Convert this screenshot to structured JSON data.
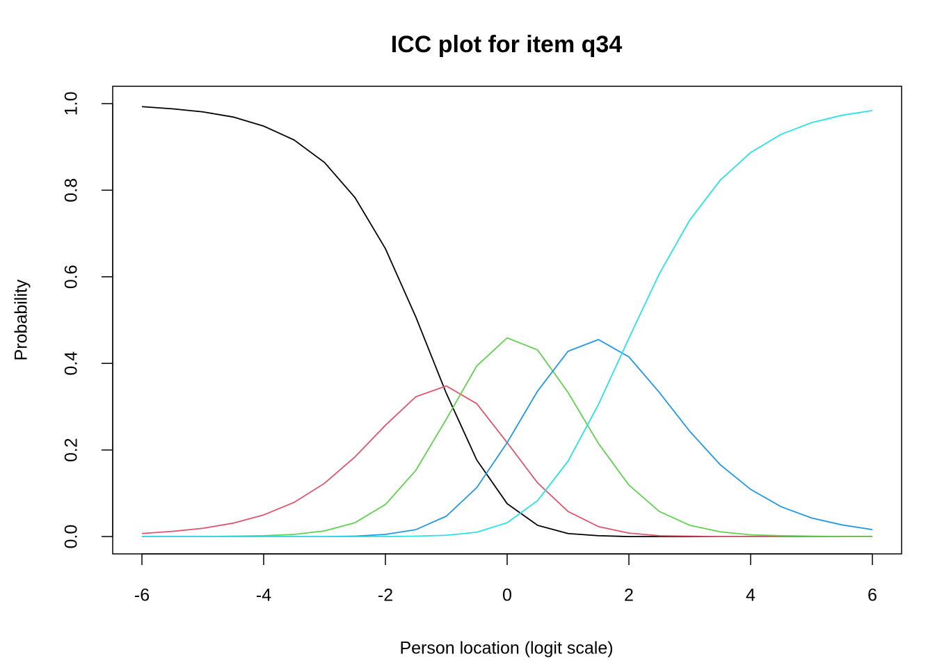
{
  "chart_data": {
    "type": "line",
    "title": "ICC plot for item q34",
    "x_label": "Person location (logit scale)",
    "y_label": "Probability",
    "x": [
      -6,
      -5.5,
      -5,
      -4.5,
      -4,
      -3.5,
      -3,
      -2.5,
      -2,
      -1.5,
      -1,
      -0.5,
      0,
      0.5,
      1,
      1.5,
      2,
      2.5,
      3,
      3.5,
      4,
      4.5,
      5,
      5.5,
      6
    ],
    "series": [
      {
        "color": "#000000",
        "values": [
          0.993,
          0.988,
          0.981,
          0.969,
          0.948,
          0.916,
          0.864,
          0.783,
          0.665,
          0.507,
          0.331,
          0.177,
          0.076,
          0.026,
          0.007,
          0.002,
          0,
          0,
          0,
          0,
          0,
          0,
          0,
          0,
          0
        ]
      },
      {
        "color": "#DF536B",
        "values": [
          0.007,
          0.012,
          0.019,
          0.031,
          0.05,
          0.079,
          0.123,
          0.184,
          0.257,
          0.323,
          0.348,
          0.307,
          0.217,
          0.124,
          0.058,
          0.023,
          0.008,
          0.002,
          0.001,
          0,
          0,
          0,
          0,
          0,
          0
        ]
      },
      {
        "color": "#61D04F",
        "values": [
          0,
          0,
          0,
          0.001,
          0.002,
          0.005,
          0.013,
          0.032,
          0.074,
          0.153,
          0.271,
          0.394,
          0.459,
          0.431,
          0.333,
          0.215,
          0.119,
          0.058,
          0.026,
          0.011,
          0.004,
          0.002,
          0.001,
          0,
          0
        ]
      },
      {
        "color": "#2297E6",
        "values": [
          0,
          0,
          0,
          0,
          0,
          0,
          0,
          0.001,
          0.005,
          0.016,
          0.047,
          0.113,
          0.217,
          0.336,
          0.428,
          0.455,
          0.415,
          0.333,
          0.243,
          0.166,
          0.109,
          0.069,
          0.043,
          0.027,
          0.016
        ]
      },
      {
        "color": "#28E2E5",
        "values": [
          0,
          0,
          0,
          0,
          0,
          0,
          0,
          0,
          0,
          0.001,
          0.003,
          0.01,
          0.032,
          0.083,
          0.174,
          0.305,
          0.458,
          0.607,
          0.731,
          0.823,
          0.887,
          0.929,
          0.956,
          0.973,
          0.984
        ]
      }
    ],
    "xlim": [
      -6.48,
      6.48
    ],
    "ylim": [
      -0.04,
      1.04
    ],
    "xticks": [
      -6,
      -4,
      -2,
      0,
      2,
      4,
      6
    ],
    "yticks": [
      {
        "value": 0,
        "label": "0.0"
      },
      {
        "value": 0.2,
        "label": "0.2"
      },
      {
        "value": 0.4,
        "label": "0.4"
      },
      {
        "value": 0.6,
        "label": "0.6"
      },
      {
        "value": 0.8,
        "label": "0.8"
      },
      {
        "value": 1,
        "label": "1.0"
      }
    ],
    "grid": false
  }
}
